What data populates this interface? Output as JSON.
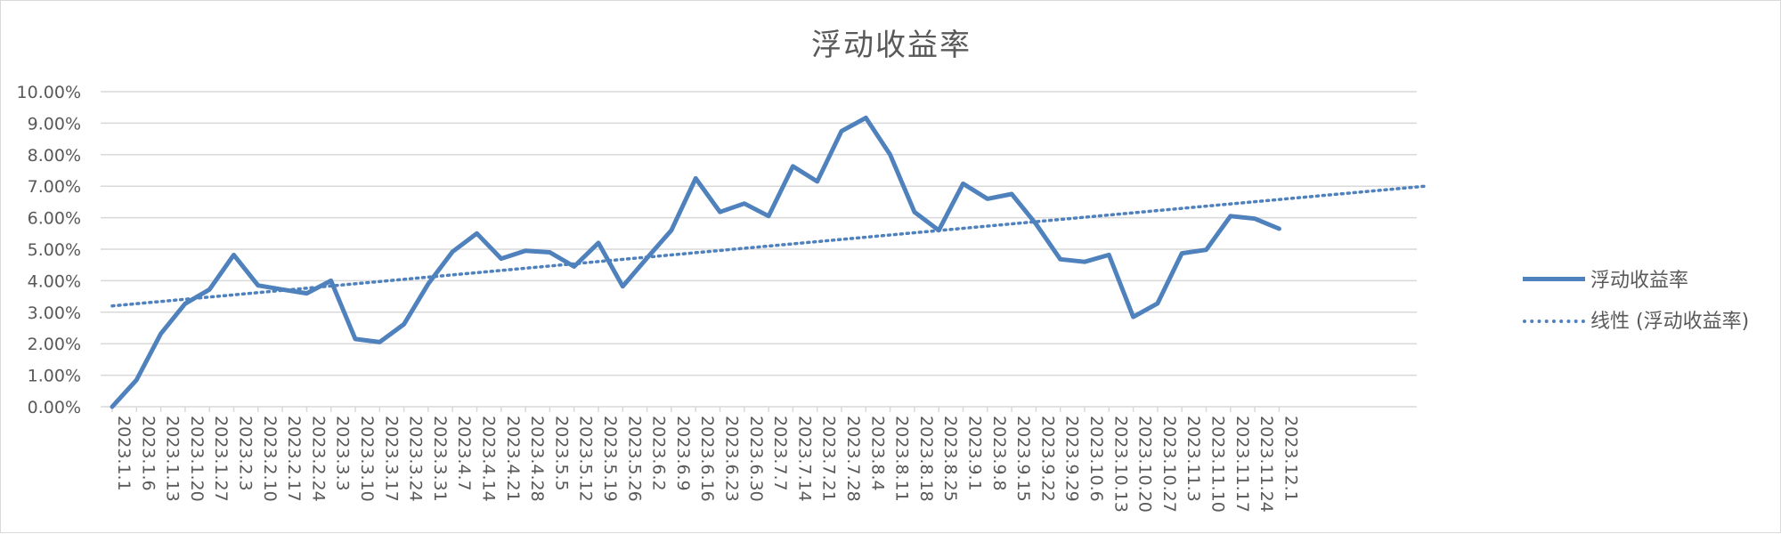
{
  "chart_data": {
    "type": "line",
    "title": "浮动收益率",
    "xlabel": "",
    "ylabel": "",
    "ylim": [
      0,
      0.1
    ],
    "yticks": [
      "0.00%",
      "1.00%",
      "2.00%",
      "3.00%",
      "4.00%",
      "5.00%",
      "6.00%",
      "7.00%",
      "8.00%",
      "9.00%",
      "10.00%"
    ],
    "grid": true,
    "legend_position": "right",
    "categories": [
      "2023.1.1",
      "2023.1.6",
      "2023.1.13",
      "2023.1.20",
      "2023.1.27",
      "2023.2.3",
      "2023.2.10",
      "2023.2.17",
      "2023.2.24",
      "2023.3.3",
      "2023.3.10",
      "2023.3.17",
      "2023.3.24",
      "2023.3.31",
      "2023.4.7",
      "2023.4.14",
      "2023.4.21",
      "2023.4.28",
      "2023.5.5",
      "2023.5.12",
      "2023.5.19",
      "2023.5.26",
      "2023.6.2",
      "2023.6.9",
      "2023.6.16",
      "2023.6.23",
      "2023.6.30",
      "2023.7.7",
      "2023.7.14",
      "2023.7.21",
      "2023.7.28",
      "2023.8.4",
      "2023.8.11",
      "2023.8.18",
      "2023.8.25",
      "2023.9.1",
      "2023.9.8",
      "2023.9.15",
      "2023.9.22",
      "2023.9.29",
      "2023.10.6",
      "2023.10.13",
      "2023.10.20",
      "2023.10.27",
      "2023.11.3",
      "2023.11.10",
      "2023.11.17",
      "2023.11.24",
      "2023.12.1"
    ],
    "series": [
      {
        "name": "浮动收益率",
        "color": "#4f81bd",
        "values": [
          0.0,
          0.0085,
          0.0232,
          0.0327,
          0.0372,
          0.0482,
          0.0385,
          0.0372,
          0.036,
          0.04,
          0.0215,
          0.0205,
          0.0262,
          0.039,
          0.0492,
          0.055,
          0.047,
          0.0495,
          0.049,
          0.0445,
          0.052,
          0.0382,
          0.0472,
          0.056,
          0.0725,
          0.0618,
          0.0645,
          0.0605,
          0.0763,
          0.0715,
          0.0875,
          0.0917,
          0.08,
          0.0618,
          0.056,
          0.0708,
          0.066,
          0.0675,
          0.058,
          0.0468,
          0.046,
          0.0482,
          0.0285,
          0.0328,
          0.0487,
          0.0498,
          0.0605,
          0.0597,
          0.0565
        ]
      },
      {
        "name": "线性 (浮动收益率)",
        "color": "#4f81bd",
        "style": "dotted",
        "trend": {
          "type": "linear",
          "start": 0.032,
          "end": 0.07,
          "extends_to_index": 54
        }
      }
    ]
  }
}
